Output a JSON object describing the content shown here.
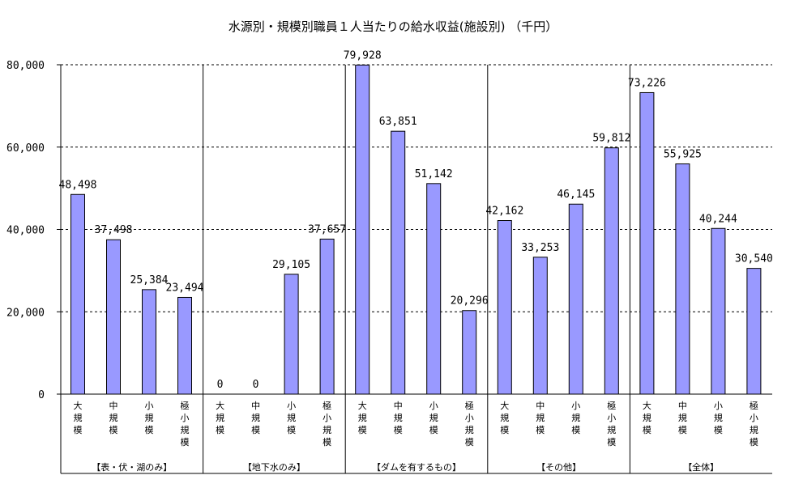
{
  "chart_data": {
    "type": "bar",
    "title": "水源別・規模別職員１人当たりの給水収益(施設別) （千円）",
    "ylim": [
      0,
      80000
    ],
    "yticks": [
      "0",
      "20,000",
      "40,000",
      "60,000",
      "80,000"
    ],
    "ytick_values": [
      0,
      20000,
      40000,
      60000,
      80000
    ],
    "grid": true,
    "bar_color": "#9999ff",
    "groups": [
      {
        "name": "【表・伏・湖のみ】",
        "categories": [
          "大規模",
          "中規模",
          "小規模",
          "極小規模"
        ],
        "values": [
          48498,
          37498,
          25384,
          23494
        ],
        "labels": [
          "48,498",
          "37,498",
          "25,384",
          "23,494"
        ]
      },
      {
        "name": "【地下水のみ】",
        "categories": [
          "大規模",
          "中規模",
          "小規模",
          "極小規模"
        ],
        "values": [
          0,
          0,
          29105,
          37657
        ],
        "labels": [
          "0",
          "0",
          "29,105",
          "37,657"
        ]
      },
      {
        "name": "【ダムを有するもの】",
        "categories": [
          "大規模",
          "中規模",
          "小規模",
          "極小規模"
        ],
        "values": [
          79928,
          63851,
          51142,
          20296
        ],
        "labels": [
          "79,928",
          "63,851",
          "51,142",
          "20,296"
        ]
      },
      {
        "name": "【その他】",
        "categories": [
          "大規模",
          "中規模",
          "小規模",
          "極小規模"
        ],
        "values": [
          42162,
          33253,
          46145,
          59812
        ],
        "labels": [
          "42,162",
          "33,253",
          "46,145",
          "59,812"
        ]
      },
      {
        "name": "【全体】",
        "categories": [
          "大規模",
          "中規模",
          "小規模",
          "極小規模"
        ],
        "values": [
          73226,
          55925,
          40244,
          30540
        ],
        "labels": [
          "73,226",
          "55,925",
          "40,244",
          "30,540"
        ]
      }
    ]
  }
}
